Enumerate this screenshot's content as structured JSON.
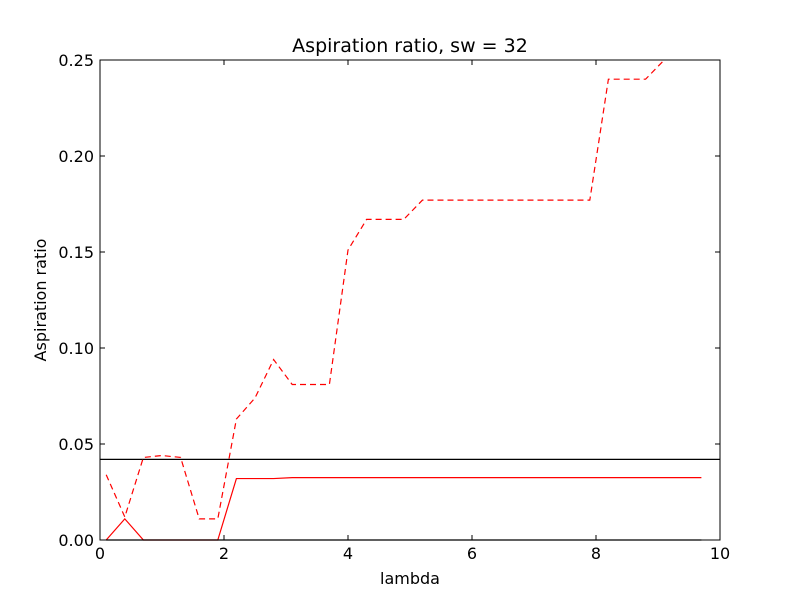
{
  "chart_data": {
    "type": "line",
    "title": "Aspiration ratio, sw = 32",
    "xlabel": "lambda",
    "ylabel": "Aspiration ratio",
    "xlim": [
      0,
      10
    ],
    "ylim": [
      0,
      0.25
    ],
    "x_ticks": [
      "0",
      "2",
      "4",
      "6",
      "8",
      "10"
    ],
    "y_ticks": [
      "0.00",
      "0.05",
      "0.10",
      "0.15",
      "0.20",
      "0.25"
    ],
    "grid": false,
    "reference_line": {
      "y": 0.042,
      "color": "#000000"
    },
    "series": [
      {
        "color": "#ff0000",
        "style": "dashed",
        "x": [
          0.1,
          0.4,
          0.7,
          1.0,
          1.3,
          1.6,
          1.9,
          2.2,
          2.5,
          2.8,
          3.1,
          3.4,
          3.7,
          4.0,
          4.3,
          4.6,
          4.9,
          5.2,
          5.5,
          5.8,
          6.1,
          6.4,
          6.7,
          7.0,
          7.3,
          7.6,
          7.9,
          8.2,
          8.5,
          8.8,
          9.1
        ],
        "y": [
          0.034,
          0.012,
          0.043,
          0.044,
          0.043,
          0.011,
          0.011,
          0.063,
          0.074,
          0.094,
          0.081,
          0.081,
          0.081,
          0.151,
          0.167,
          0.167,
          0.167,
          0.177,
          0.177,
          0.177,
          0.177,
          0.177,
          0.177,
          0.177,
          0.177,
          0.177,
          0.177,
          0.24,
          0.24,
          0.24,
          0.25
        ]
      },
      {
        "color": "#ff0000",
        "style": "solid",
        "x": [
          0.1,
          0.4,
          0.7,
          1.0,
          1.3,
          1.6,
          1.9,
          2.2,
          2.5,
          2.8,
          3.1,
          3.4,
          3.7,
          4.0,
          5.0,
          6.0,
          7.0,
          8.0,
          9.0,
          9.7
        ],
        "y": [
          0.0,
          0.011,
          0.0,
          0.0,
          0.0,
          0.0,
          0.0,
          0.032,
          0.032,
          0.032,
          0.0325,
          0.0325,
          0.0325,
          0.0325,
          0.0325,
          0.0325,
          0.0325,
          0.0325,
          0.0325,
          0.0325
        ]
      },
      {
        "color": "#000000",
        "style": "solid",
        "x": [
          0.1,
          9.7
        ],
        "y": [
          0.0,
          0.0
        ]
      }
    ]
  }
}
